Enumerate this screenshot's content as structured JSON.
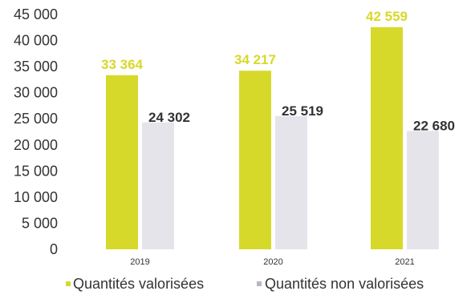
{
  "chart_data": {
    "type": "bar",
    "categories": [
      "2019",
      "2020",
      "2021"
    ],
    "series": [
      {
        "name": "Quantités valorisées",
        "values": [
          33364,
          34217,
          42559
        ],
        "labels": [
          "33 364",
          "34 217",
          "42 559"
        ],
        "color": "#d7d92a",
        "label_color": "#d7d92a"
      },
      {
        "name": "Quantités non valorisées",
        "values": [
          24302,
          25519,
          22680
        ],
        "labels": [
          "24 302",
          "25 519",
          "22 680"
        ],
        "color": "#e4e4ea",
        "label_color": "#333333"
      }
    ],
    "yticks": [
      0,
      5000,
      10000,
      15000,
      20000,
      25000,
      30000,
      35000,
      40000,
      45000
    ],
    "ytick_labels": [
      "0",
      "5 000",
      "10 000",
      "15 000",
      "20 000",
      "25 000",
      "30 000",
      "35 000",
      "40 000",
      "45 000"
    ],
    "ylim": [
      0,
      45000
    ],
    "grid": false,
    "legend_position": "bottom",
    "title": "",
    "xlabel": "",
    "ylabel": ""
  }
}
